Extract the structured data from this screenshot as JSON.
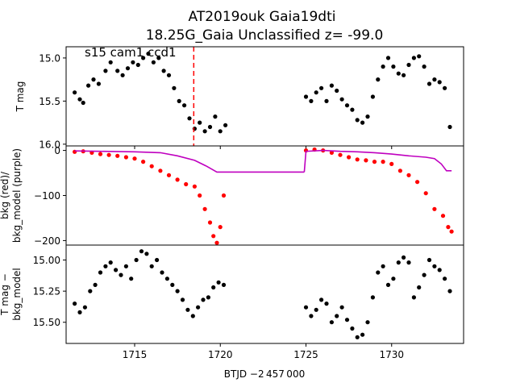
{
  "figure": {
    "title_line1": "AT2019ouk  Gaia19dti",
    "title_line2": "18.25G_Gaia Unclassified z= -99.0",
    "xlabel": "BTJD −2 457 000"
  },
  "colors": {
    "points": "#000000",
    "bkg": "#ff0000",
    "bkg_model": "#bf00bf",
    "marker_line": "#ff0000"
  },
  "chart_data": [
    {
      "type": "scatter",
      "panel": "top",
      "annotation": "s15 cam1 ccd1",
      "ylabel": "T mag",
      "xlim": [
        1711.0,
        1734.2
      ],
      "ylim": [
        16.02,
        14.87
      ],
      "y_inverted": true,
      "x_ticks": [
        1715,
        1720,
        1725,
        1730
      ],
      "y_ticks": [
        15.0,
        15.5,
        16.0
      ],
      "y_tick_labels": [
        "15.0",
        "15.5",
        "16.0"
      ],
      "vertical_line": {
        "x": 1718.45,
        "style": "dashed",
        "color": "red"
      },
      "segments": [
        {
          "x": [
            1711.5,
            1711.8,
            1712.0,
            1712.3,
            1712.6,
            1712.9,
            1713.3,
            1713.6,
            1714.0,
            1714.3,
            1714.6,
            1714.9,
            1715.2,
            1715.5,
            1715.8,
            1716.1,
            1716.4,
            1716.7,
            1717.0,
            1717.3,
            1717.6,
            1717.9,
            1718.2,
            1718.5,
            1718.8,
            1719.1,
            1719.4,
            1719.7,
            1720.0,
            1720.3
          ],
          "y": [
            15.4,
            15.48,
            15.52,
            15.32,
            15.25,
            15.3,
            15.15,
            15.05,
            15.15,
            15.2,
            15.12,
            15.05,
            15.08,
            15.0,
            14.95,
            15.05,
            15.0,
            15.15,
            15.2,
            15.35,
            15.5,
            15.55,
            15.7,
            15.82,
            15.75,
            15.85,
            15.8,
            15.68,
            15.85,
            15.78
          ]
        },
        {
          "x": [
            1725.0,
            1725.3,
            1725.6,
            1725.9,
            1726.2,
            1726.5,
            1726.8,
            1727.1,
            1727.4,
            1727.7,
            1728.0,
            1728.3,
            1728.6,
            1728.9,
            1729.2,
            1729.5,
            1729.8,
            1730.1,
            1730.4,
            1730.7,
            1731.0,
            1731.3,
            1731.6,
            1731.9,
            1732.2,
            1732.5,
            1732.8,
            1733.1,
            1733.4
          ],
          "y": [
            15.45,
            15.5,
            15.4,
            15.35,
            15.5,
            15.32,
            15.38,
            15.48,
            15.55,
            15.6,
            15.72,
            15.75,
            15.68,
            15.45,
            15.25,
            15.1,
            15.0,
            15.1,
            15.18,
            15.2,
            15.08,
            15.0,
            14.98,
            15.1,
            15.3,
            15.25,
            15.28,
            15.35,
            15.8
          ]
        }
      ]
    },
    {
      "type": "line",
      "panel": "middle",
      "ylabel": "bkg (red)/\nbkg_model (purple)",
      "xlim": [
        1711.0,
        1734.2
      ],
      "ylim": [
        -210,
        10
      ],
      "y_ticks": [
        0,
        -100,
        -200
      ],
      "y_tick_labels": [
        "0",
        "−100",
        "−200"
      ],
      "series": [
        {
          "key": "bkg",
          "style": "points",
          "segments": [
            {
              "x": [
                1711.5,
                1712.0,
                1712.5,
                1713.0,
                1713.5,
                1714.0,
                1714.5,
                1715.0,
                1715.5,
                1716.0,
                1716.5,
                1717.0,
                1717.5,
                1718.0,
                1718.5,
                1718.8,
                1719.1,
                1719.4,
                1719.6,
                1719.8,
                1720.0,
                1720.2
              ],
              "y": [
                -3,
                -2,
                -5,
                -8,
                -10,
                -12,
                -15,
                -18,
                -25,
                -35,
                -45,
                -55,
                -65,
                -75,
                -80,
                -100,
                -130,
                -160,
                -190,
                -205,
                -170,
                -100
              ]
            },
            {
              "x": [
                1725.0,
                1725.5,
                1726.0,
                1726.5,
                1727.0,
                1727.5,
                1728.0,
                1728.5,
                1729.0,
                1729.5,
                1730.0,
                1730.5,
                1731.0,
                1731.5,
                1732.0,
                1732.5,
                1733.0,
                1733.3,
                1733.5
              ],
              "y": [
                0,
                2,
                0,
                -5,
                -10,
                -15,
                -20,
                -22,
                -25,
                -25,
                -30,
                -45,
                -55,
                -70,
                -95,
                -130,
                -145,
                -170,
                -180
              ]
            }
          ]
        },
        {
          "key": "bkg_model",
          "style": "line",
          "segments": [
            {
              "x": [
                1711.5,
                1713.0,
                1715.0,
                1716.5,
                1717.5,
                1718.5,
                1719.2,
                1719.8,
                1720.3,
                1721.5,
                1723.0,
                1724.9
              ],
              "y": [
                -1,
                -2,
                -3,
                -5,
                -12,
                -22,
                -35,
                -48,
                -48,
                -48,
                -48,
                -48
              ]
            },
            {
              "x": [
                1724.9,
                1725.0,
                1726.0,
                1727.0,
                1728.0,
                1729.0,
                1730.0,
                1731.0,
                1732.0,
                1732.5,
                1732.9,
                1733.2,
                1733.5
              ],
              "y": [
                -48,
                -2,
                0,
                -2,
                -3,
                -5,
                -8,
                -12,
                -15,
                -18,
                -30,
                -45,
                -45
              ]
            }
          ]
        }
      ]
    },
    {
      "type": "scatter",
      "panel": "bottom",
      "ylabel": "T mag −\nbkg_model",
      "xlim": [
        1711.0,
        1734.2
      ],
      "ylim": [
        15.67,
        14.88
      ],
      "y_inverted": true,
      "x_ticks": [
        1715,
        1720,
        1725,
        1730
      ],
      "x_tick_labels": [
        "1715",
        "1720",
        "1725",
        "1730"
      ],
      "y_ticks": [
        15.0,
        15.25,
        15.5
      ],
      "y_tick_labels": [
        "15.00",
        "15.25",
        "15.50"
      ],
      "segments": [
        {
          "x": [
            1711.5,
            1711.8,
            1712.1,
            1712.4,
            1712.7,
            1713.0,
            1713.3,
            1713.6,
            1713.9,
            1714.2,
            1714.5,
            1714.8,
            1715.1,
            1715.4,
            1715.7,
            1716.0,
            1716.3,
            1716.6,
            1716.9,
            1717.2,
            1717.5,
            1717.8,
            1718.1,
            1718.4,
            1718.7,
            1719.0,
            1719.3,
            1719.6,
            1719.9,
            1720.2
          ],
          "y": [
            15.35,
            15.42,
            15.38,
            15.25,
            15.2,
            15.1,
            15.05,
            15.02,
            15.08,
            15.12,
            15.05,
            15.15,
            15.0,
            14.93,
            14.95,
            15.05,
            15.0,
            15.1,
            15.15,
            15.2,
            15.25,
            15.32,
            15.4,
            15.45,
            15.38,
            15.32,
            15.3,
            15.22,
            15.18,
            15.2
          ]
        },
        {
          "x": [
            1725.0,
            1725.3,
            1725.6,
            1725.9,
            1726.2,
            1726.5,
            1726.8,
            1727.1,
            1727.4,
            1727.7,
            1728.0,
            1728.3,
            1728.6,
            1728.9,
            1729.2,
            1729.5,
            1729.8,
            1730.1,
            1730.4,
            1730.7,
            1731.0,
            1731.3,
            1731.6,
            1731.9,
            1732.2,
            1732.5,
            1732.8,
            1733.1,
            1733.4
          ],
          "y": [
            15.38,
            15.45,
            15.4,
            15.32,
            15.35,
            15.5,
            15.45,
            15.38,
            15.48,
            15.55,
            15.62,
            15.6,
            15.5,
            15.3,
            15.1,
            15.05,
            15.2,
            15.15,
            15.02,
            14.98,
            15.02,
            15.3,
            15.22,
            15.12,
            15.0,
            15.05,
            15.08,
            15.15,
            15.25
          ]
        }
      ]
    }
  ]
}
